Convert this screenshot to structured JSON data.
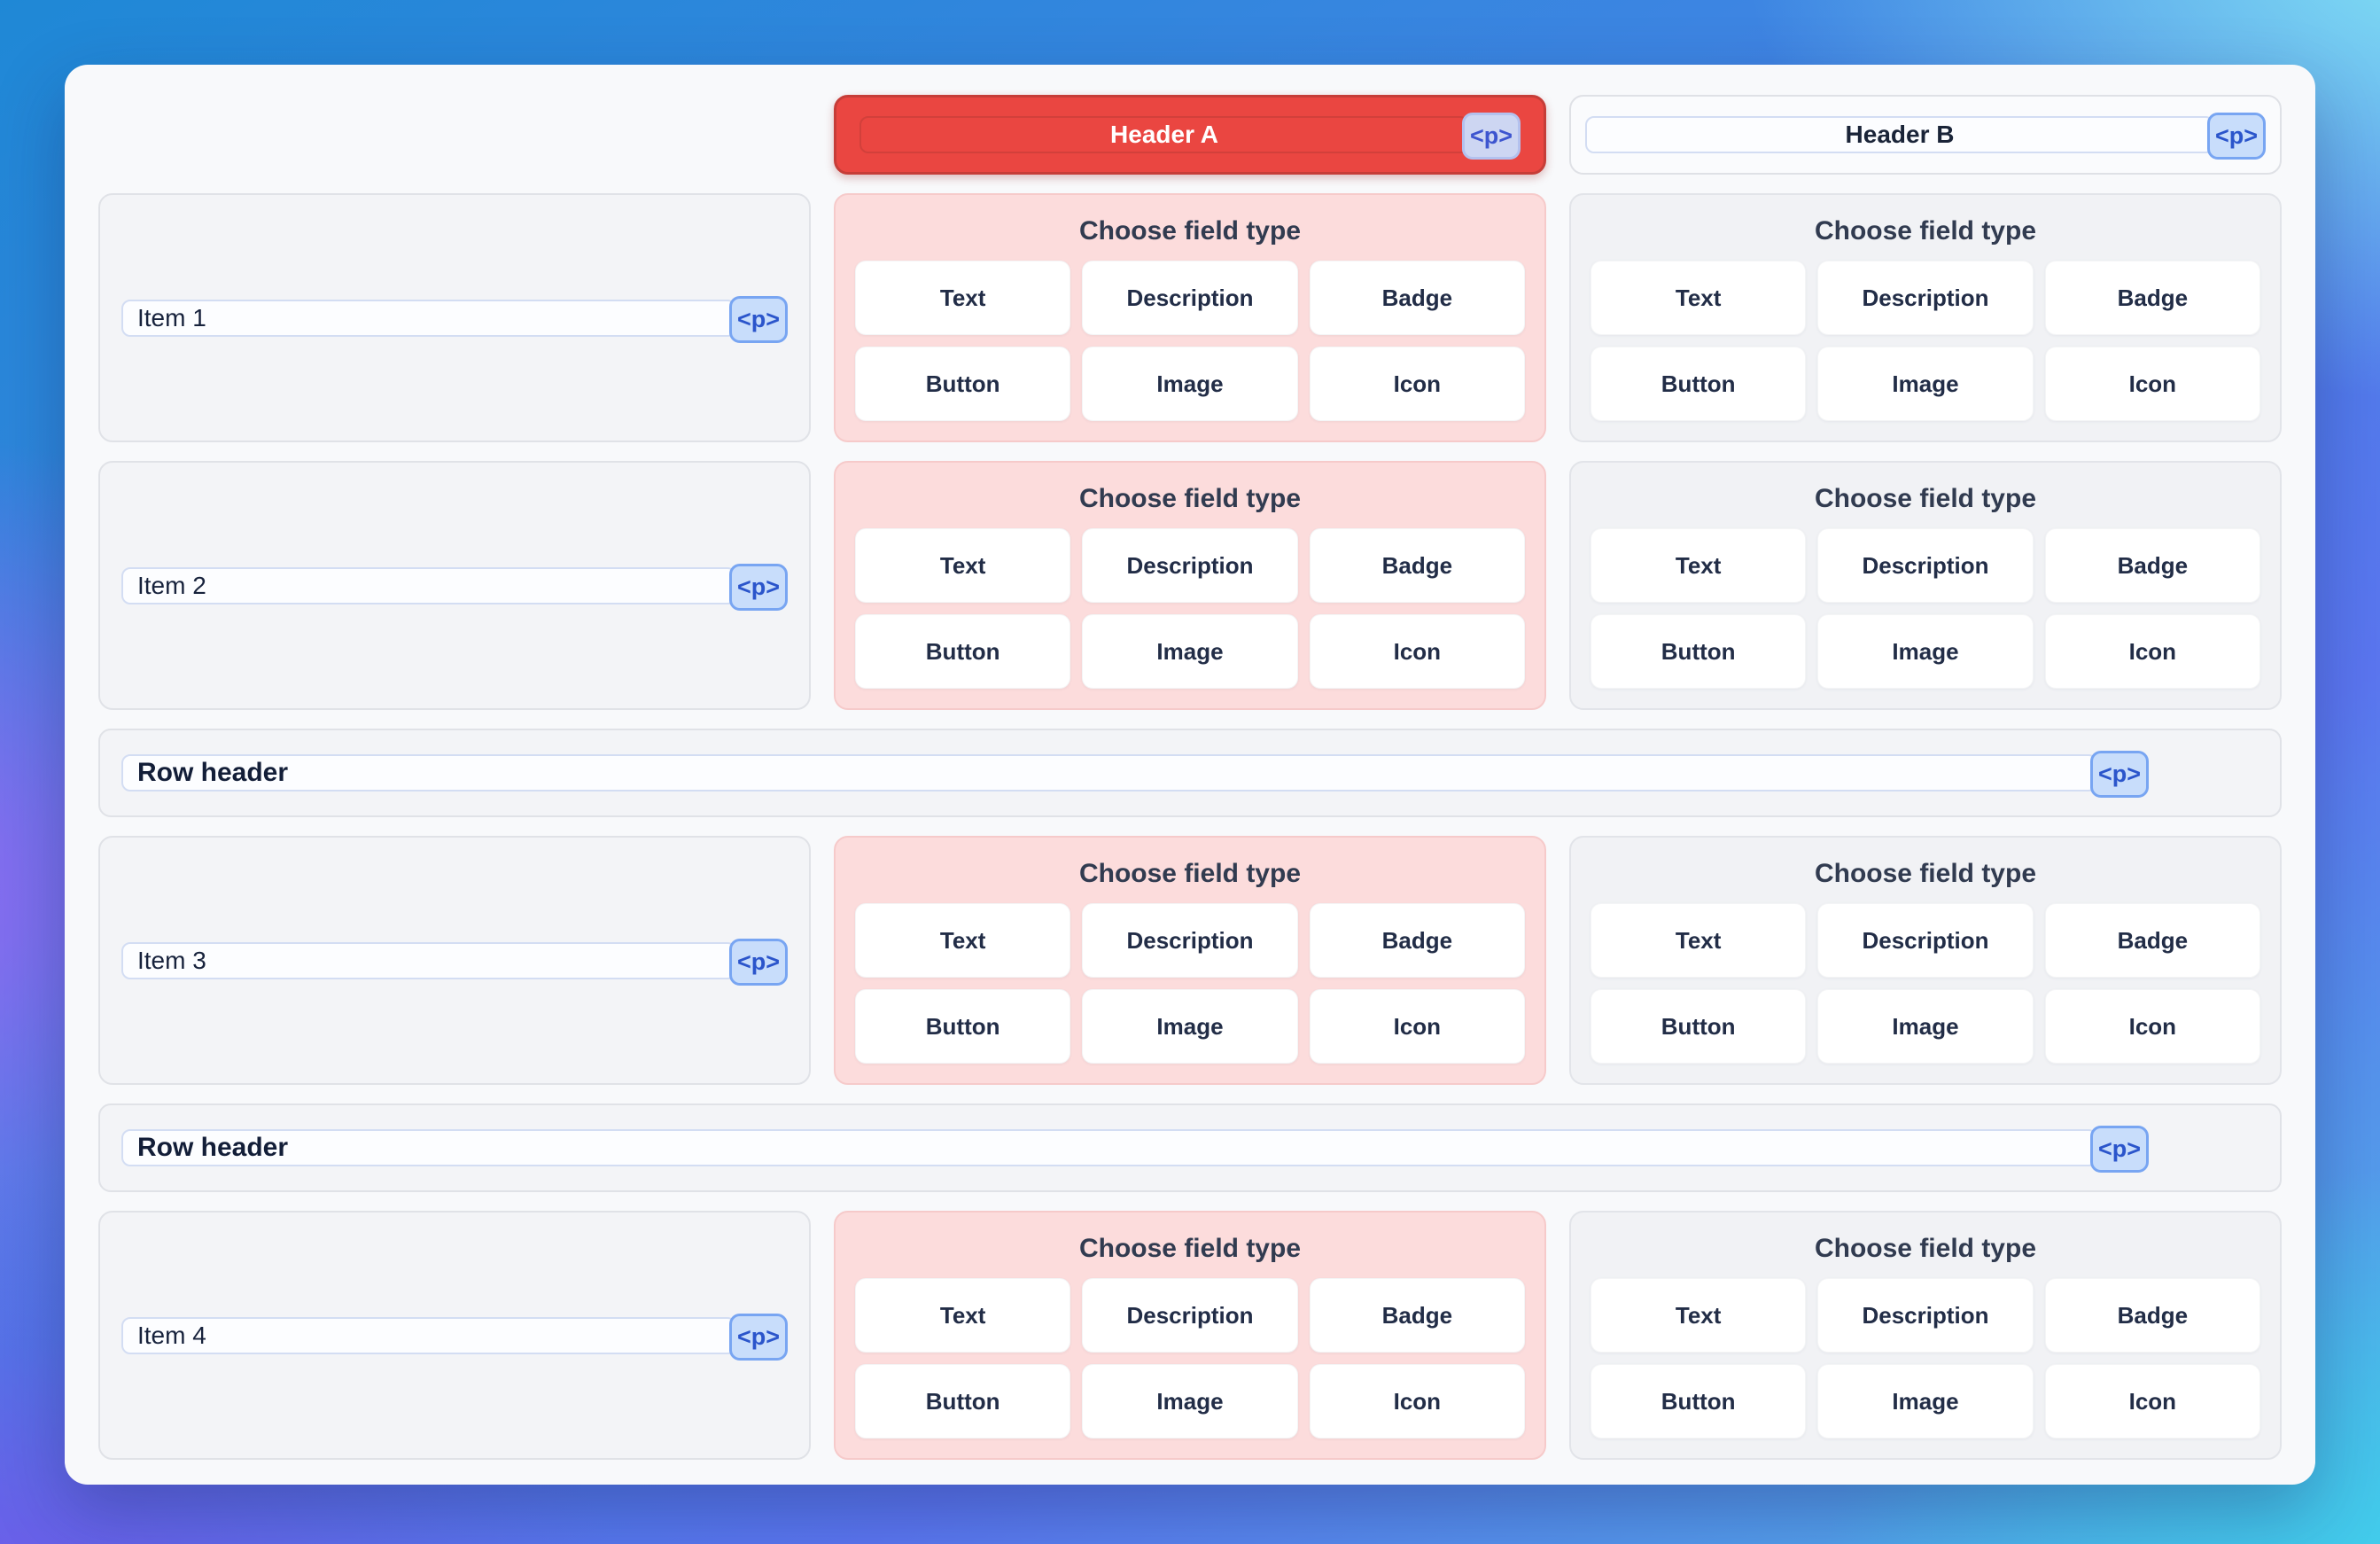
{
  "badge_label": "<p>",
  "columns": [
    {
      "header_label": "Header A",
      "selected": true
    },
    {
      "header_label": "Header B",
      "selected": false
    }
  ],
  "field_chooser": {
    "title": "Choose field type",
    "options": [
      "Text",
      "Description",
      "Badge",
      "Button",
      "Image",
      "Icon"
    ]
  },
  "rows": [
    {
      "type": "item",
      "label": "Item 1"
    },
    {
      "type": "item",
      "label": "Item 2"
    },
    {
      "type": "row_header",
      "label": "Row header"
    },
    {
      "type": "item",
      "label": "Item 3"
    },
    {
      "type": "row_header",
      "label": "Row header"
    },
    {
      "type": "item",
      "label": "Item 4"
    }
  ],
  "colors": {
    "selected_header_red": "#ea4641",
    "chooser_pink": "#fcdcdc",
    "canvas_bg": "#f8f9fb",
    "badge_bg": "#c8ddfb",
    "badge_border": "#78a5f2",
    "badge_text": "#2b55cb"
  }
}
